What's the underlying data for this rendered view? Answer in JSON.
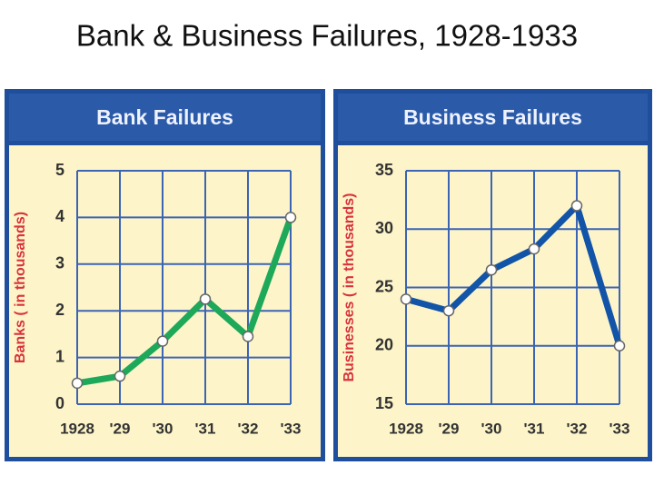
{
  "title": "Bank & Business Failures, 1928-1933",
  "chart_data": [
    {
      "type": "line",
      "title": "Bank Failures",
      "ylabel": "Banks ( in thousands)",
      "categories": [
        "1928",
        "'29",
        "'30",
        "'31",
        "'32",
        "'33"
      ],
      "values": [
        0.45,
        0.6,
        1.35,
        2.25,
        1.45,
        4.0
      ],
      "color": "#1ea85a",
      "ylim": [
        0,
        5
      ],
      "yticks": [
        0,
        1,
        2,
        3,
        4,
        5
      ],
      "grid": true
    },
    {
      "type": "line",
      "title": "Business Failures",
      "ylabel": "Businesses ( in thousands)",
      "categories": [
        "1928",
        "'29",
        "'30",
        "'31",
        "'32",
        "'33"
      ],
      "values": [
        24,
        23,
        26.5,
        28.3,
        32,
        20
      ],
      "color": "#1254a8",
      "ylim": [
        15,
        35
      ],
      "yticks": [
        15,
        20,
        25,
        30,
        35
      ],
      "grid": true
    }
  ]
}
